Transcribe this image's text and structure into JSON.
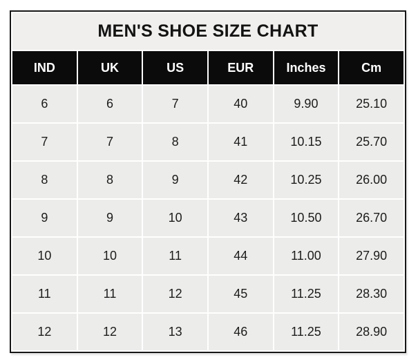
{
  "page": {
    "background_color": "#ffffff"
  },
  "colors": {
    "title_background": "#f0efed",
    "header_background": "#0b0b0b",
    "header_text": "#ffffff",
    "cell_background": "#ececea",
    "gridline": "#ffffff",
    "outer_border": "#161616",
    "body_text": "#1c1c1c"
  },
  "chart_data": {
    "type": "table",
    "title": "MEN'S SHOE SIZE CHART",
    "columns": [
      "IND",
      "UK",
      "US",
      "EUR",
      "Inches",
      "Cm"
    ],
    "rows": [
      [
        "6",
        "6",
        "7",
        "40",
        "9.90",
        "25.10"
      ],
      [
        "7",
        "7",
        "8",
        "41",
        "10.15",
        "25.70"
      ],
      [
        "8",
        "8",
        "9",
        "42",
        "10.25",
        "26.00"
      ],
      [
        "9",
        "9",
        "10",
        "43",
        "10.50",
        "26.70"
      ],
      [
        "10",
        "10",
        "11",
        "44",
        "11.00",
        "27.90"
      ],
      [
        "11",
        "11",
        "12",
        "45",
        "11.25",
        "28.30"
      ],
      [
        "12",
        "12",
        "13",
        "46",
        "11.25",
        "28.90"
      ]
    ]
  }
}
